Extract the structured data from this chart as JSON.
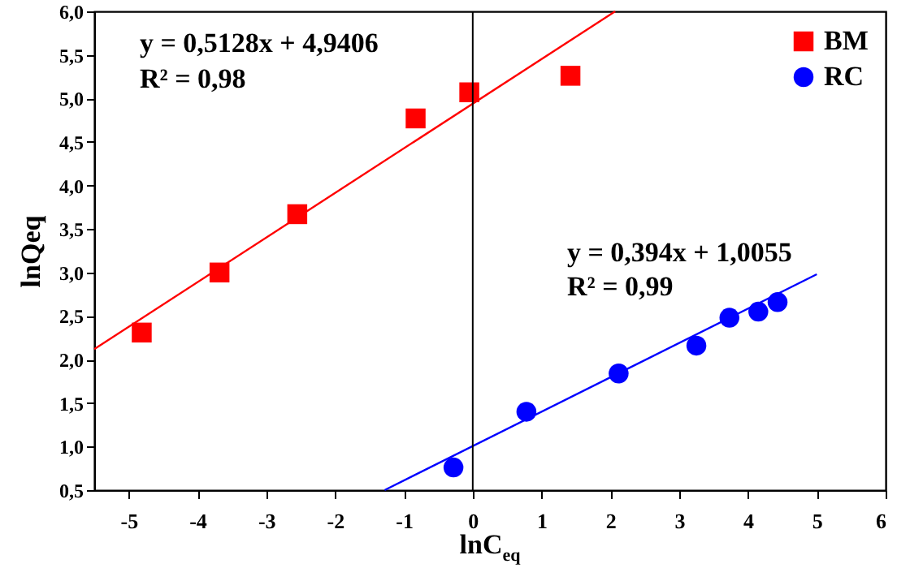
{
  "chart_data": {
    "type": "scatter",
    "xlabel": "lnC$_{eq}$",
    "ylabel": "lnQeq",
    "xlim": [
      -5.5,
      6
    ],
    "xticks": [
      -5,
      -4,
      -3,
      -2,
      -1,
      0,
      1,
      2,
      3,
      4,
      5,
      6
    ],
    "ylim": [
      0.5,
      6.0
    ],
    "yticks": [
      {
        "value": 0.5,
        "label": "0,5"
      },
      {
        "value": 1.0,
        "label": "1,0"
      },
      {
        "value": 1.5,
        "label": "1,5"
      },
      {
        "value": 2.0,
        "label": "2,0"
      },
      {
        "value": 2.5,
        "label": "2,5"
      },
      {
        "value": 3.0,
        "label": "3,0"
      },
      {
        "value": 3.5,
        "label": "3,5"
      },
      {
        "value": 4.0,
        "label": "4,0"
      },
      {
        "value": 4.5,
        "label": "4,5"
      },
      {
        "value": 5.0,
        "label": "5,0"
      },
      {
        "value": 5.5,
        "label": "5,5"
      },
      {
        "value": 6.0,
        "label": "6,0"
      }
    ],
    "series": [
      {
        "name": "BM",
        "type": "scatter",
        "marker": "square",
        "color": "#ff0000",
        "x": [
          -4.81,
          -3.68,
          -2.55,
          -0.83,
          -0.05,
          1.42
        ],
        "values": [
          2.31,
          3.0,
          3.67,
          4.77,
          5.07,
          5.26
        ]
      },
      {
        "name": "RC",
        "type": "scatter",
        "marker": "circle",
        "color": "#0000ff",
        "x": [
          -0.28,
          0.78,
          2.12,
          3.25,
          3.73,
          4.15,
          4.43
        ],
        "values": [
          0.76,
          1.4,
          1.84,
          2.16,
          2.48,
          2.55,
          2.66
        ]
      },
      {
        "type": "line",
        "color": "#ff0000",
        "x": [
          -5.5,
          2.07
        ],
        "values": [
          2.12,
          6.0
        ]
      },
      {
        "type": "line",
        "color": "#0000ff",
        "x": [
          -1.28,
          5.0
        ],
        "values": [
          0.5,
          2.98
        ]
      }
    ],
    "ref_lines": [
      {
        "axis": "x",
        "value": 0,
        "color": "#000000"
      }
    ],
    "annotations": [
      "y = 0,5128x + 4,9406",
      "R² = 0,98",
      "y = 0,394x + 1,0055",
      "R² = 0,99"
    ],
    "legend": "top right",
    "grid": false
  }
}
